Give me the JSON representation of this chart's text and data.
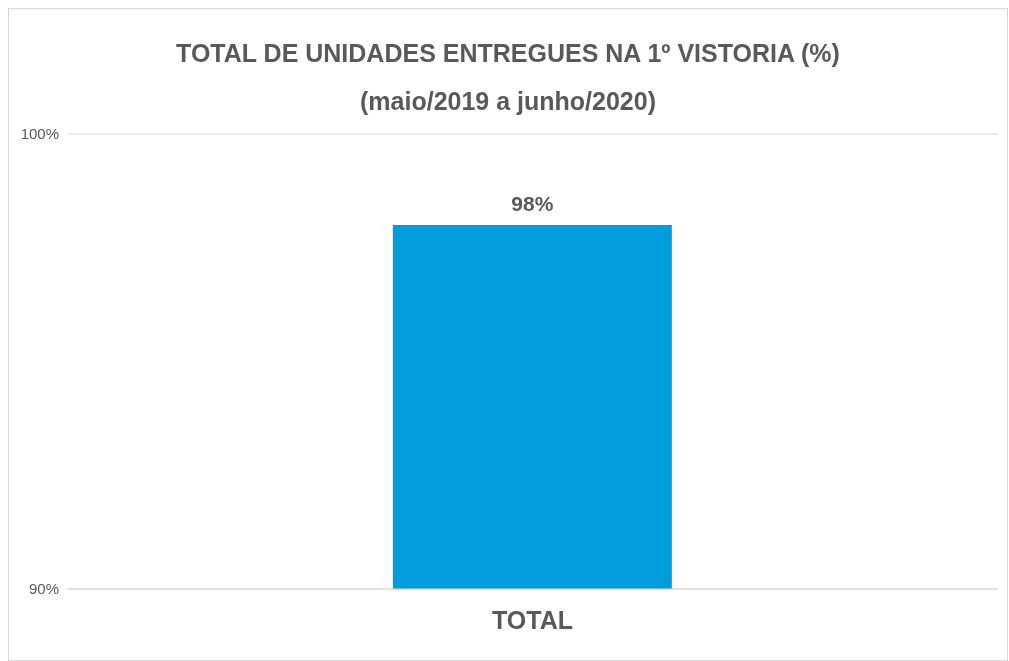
{
  "chart_data": {
    "type": "bar",
    "title": "TOTAL DE UNIDADES ENTREGUES NA 1º VISTORIA (%)",
    "subtitle": "(maio/2019 a junho/2020)",
    "categories": [
      "TOTAL"
    ],
    "values": [
      98
    ],
    "value_labels": [
      "98%"
    ],
    "color": "#009cdb",
    "ylim": [
      90,
      100
    ],
    "yticks": [
      {
        "value": 90,
        "label": "90%"
      },
      {
        "value": 100,
        "label": "100%"
      }
    ],
    "grid": "y"
  }
}
